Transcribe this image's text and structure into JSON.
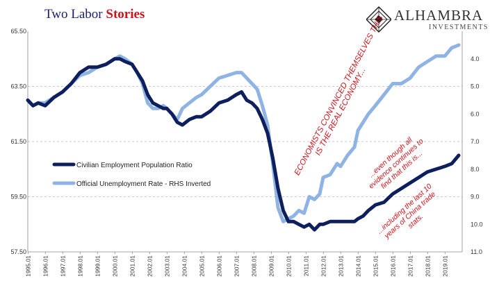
{
  "title": {
    "plain": "Two Labor ",
    "accent": "Stories"
  },
  "logo": {
    "name": "ALHAMBRA",
    "sub": "INVESTMENTS"
  },
  "chart_data": {
    "type": "line",
    "x_ticks": [
      "1995.01",
      "1996.01",
      "1997.01",
      "1998.01",
      "1999.01",
      "2000.01",
      "2001.01",
      "2002.01",
      "2003.01",
      "2004.01",
      "2005.01",
      "2006.01",
      "2007.01",
      "2008.01",
      "2009.01",
      "2010.01",
      "2011.01",
      "2012.01",
      "2013.01",
      "2014.01",
      "2015.01",
      "2016.01",
      "2017.01",
      "2018.01",
      "2019.01"
    ],
    "xlim": [
      1995.0,
      2020.0
    ],
    "y_left": {
      "lim": [
        57.5,
        65.5
      ],
      "ticks": [
        "65.50",
        "63.50",
        "61.50",
        "59.50",
        "57.50"
      ]
    },
    "y_right": {
      "lim_inverted": [
        3.0,
        11.0
      ],
      "ticks": [
        "4.0",
        "5.0",
        "6.0",
        "7.0",
        "8.0",
        "9.0",
        "10.0",
        "11.0"
      ]
    },
    "series": [
      {
        "name": "Civilian Employment Population Ratio",
        "axis": "left",
        "color": "#0d1f5c",
        "points": [
          [
            1995.0,
            63.0
          ],
          [
            1995.3,
            62.8
          ],
          [
            1995.6,
            62.9
          ],
          [
            1996.0,
            62.8
          ],
          [
            1996.5,
            63.1
          ],
          [
            1997.0,
            63.3
          ],
          [
            1997.5,
            63.6
          ],
          [
            1998.0,
            64.0
          ],
          [
            1998.5,
            64.2
          ],
          [
            1999.0,
            64.2
          ],
          [
            1999.5,
            64.3
          ],
          [
            2000.0,
            64.5
          ],
          [
            2000.3,
            64.5
          ],
          [
            2000.6,
            64.4
          ],
          [
            2001.0,
            64.3
          ],
          [
            2001.3,
            64.0
          ],
          [
            2001.6,
            63.7
          ],
          [
            2001.9,
            63.2
          ],
          [
            2002.2,
            62.9
          ],
          [
            2002.5,
            62.8
          ],
          [
            2002.8,
            62.7
          ],
          [
            2003.0,
            62.7
          ],
          [
            2003.3,
            62.5
          ],
          [
            2003.6,
            62.2
          ],
          [
            2003.9,
            62.1
          ],
          [
            2004.3,
            62.3
          ],
          [
            2004.7,
            62.4
          ],
          [
            2005.0,
            62.4
          ],
          [
            2005.5,
            62.6
          ],
          [
            2006.0,
            62.9
          ],
          [
            2006.5,
            63.0
          ],
          [
            2007.0,
            63.2
          ],
          [
            2007.3,
            63.3
          ],
          [
            2007.6,
            63.0
          ],
          [
            2007.9,
            62.9
          ],
          [
            2008.2,
            62.7
          ],
          [
            2008.5,
            62.3
          ],
          [
            2008.8,
            61.8
          ],
          [
            2009.1,
            60.9
          ],
          [
            2009.4,
            59.8
          ],
          [
            2009.7,
            59.0
          ],
          [
            2010.0,
            58.6
          ],
          [
            2010.3,
            58.6
          ],
          [
            2010.6,
            58.5
          ],
          [
            2010.9,
            58.4
          ],
          [
            2011.2,
            58.5
          ],
          [
            2011.5,
            58.3
          ],
          [
            2011.8,
            58.5
          ],
          [
            2012.0,
            58.5
          ],
          [
            2012.4,
            58.6
          ],
          [
            2012.8,
            58.6
          ],
          [
            2013.0,
            58.6
          ],
          [
            2013.4,
            58.6
          ],
          [
            2013.8,
            58.6
          ],
          [
            2014.0,
            58.7
          ],
          [
            2014.3,
            58.8
          ],
          [
            2014.6,
            59.0
          ],
          [
            2015.0,
            59.2
          ],
          [
            2015.5,
            59.3
          ],
          [
            2016.0,
            59.6
          ],
          [
            2016.5,
            59.8
          ],
          [
            2017.0,
            60.0
          ],
          [
            2017.5,
            60.2
          ],
          [
            2018.0,
            60.4
          ],
          [
            2018.5,
            60.5
          ],
          [
            2019.0,
            60.6
          ],
          [
            2019.4,
            60.7
          ],
          [
            2019.8,
            61.0
          ]
        ]
      },
      {
        "name": "Official Unemployment Rate - RHS Inverted",
        "axis": "right",
        "color": "#8fb4e3",
        "points": [
          [
            1995.0,
            5.5
          ],
          [
            1995.3,
            5.7
          ],
          [
            1995.6,
            5.6
          ],
          [
            1996.0,
            5.6
          ],
          [
            1996.5,
            5.4
          ],
          [
            1997.0,
            5.2
          ],
          [
            1997.5,
            4.9
          ],
          [
            1998.0,
            4.6
          ],
          [
            1998.5,
            4.5
          ],
          [
            1999.0,
            4.3
          ],
          [
            1999.5,
            4.2
          ],
          [
            2000.0,
            4.0
          ],
          [
            2000.3,
            3.9
          ],
          [
            2000.6,
            4.0
          ],
          [
            2001.0,
            4.2
          ],
          [
            2001.3,
            4.5
          ],
          [
            2001.6,
            4.9
          ],
          [
            2001.9,
            5.6
          ],
          [
            2002.2,
            5.8
          ],
          [
            2002.5,
            5.8
          ],
          [
            2002.8,
            5.7
          ],
          [
            2003.0,
            5.8
          ],
          [
            2003.3,
            6.0
          ],
          [
            2003.6,
            6.2
          ],
          [
            2003.9,
            5.8
          ],
          [
            2004.3,
            5.6
          ],
          [
            2004.7,
            5.4
          ],
          [
            2005.0,
            5.3
          ],
          [
            2005.5,
            5.0
          ],
          [
            2006.0,
            4.7
          ],
          [
            2006.5,
            4.6
          ],
          [
            2007.0,
            4.5
          ],
          [
            2007.3,
            4.5
          ],
          [
            2007.6,
            4.7
          ],
          [
            2007.9,
            4.9
          ],
          [
            2008.2,
            5.1
          ],
          [
            2008.5,
            5.7
          ],
          [
            2008.8,
            6.4
          ],
          [
            2009.1,
            7.8
          ],
          [
            2009.4,
            9.4
          ],
          [
            2009.7,
            9.9
          ],
          [
            2010.0,
            9.8
          ],
          [
            2010.3,
            9.7
          ],
          [
            2010.6,
            9.5
          ],
          [
            2010.9,
            9.6
          ],
          [
            2011.2,
            9.0
          ],
          [
            2011.5,
            9.1
          ],
          [
            2011.8,
            8.9
          ],
          [
            2012.0,
            8.3
          ],
          [
            2012.4,
            8.2
          ],
          [
            2012.8,
            7.8
          ],
          [
            2013.0,
            7.9
          ],
          [
            2013.4,
            7.5
          ],
          [
            2013.8,
            7.2
          ],
          [
            2014.0,
            6.6
          ],
          [
            2014.3,
            6.3
          ],
          [
            2014.6,
            6.0
          ],
          [
            2015.0,
            5.7
          ],
          [
            2015.5,
            5.3
          ],
          [
            2016.0,
            4.9
          ],
          [
            2016.5,
            4.9
          ],
          [
            2017.0,
            4.7
          ],
          [
            2017.5,
            4.3
          ],
          [
            2018.0,
            4.1
          ],
          [
            2018.5,
            3.9
          ],
          [
            2019.0,
            3.9
          ],
          [
            2019.4,
            3.6
          ],
          [
            2019.8,
            3.5
          ]
        ]
      }
    ],
    "legend": [
      {
        "label": "Civilian Employment Population Ratio",
        "color": "#0d1f5c"
      },
      {
        "label": "Official Unemployment Rate - RHS Inverted",
        "color": "#8fb4e3"
      }
    ],
    "annotations": [
      {
        "id": "economists",
        "lines": [
          "ECONOMISTS CONVINCED THEMSELVES THIS",
          "IS THE REAL ECONOMY..."
        ]
      },
      {
        "id": "evidence",
        "lines": [
          "...even though all",
          "evidence continues to",
          "find that this is..."
        ]
      },
      {
        "id": "china",
        "lines": [
          "...including the last 10",
          "years of China trade",
          "stats."
        ]
      }
    ],
    "grid": "horizontal-dashed",
    "legend_placement": "left-middle"
  }
}
